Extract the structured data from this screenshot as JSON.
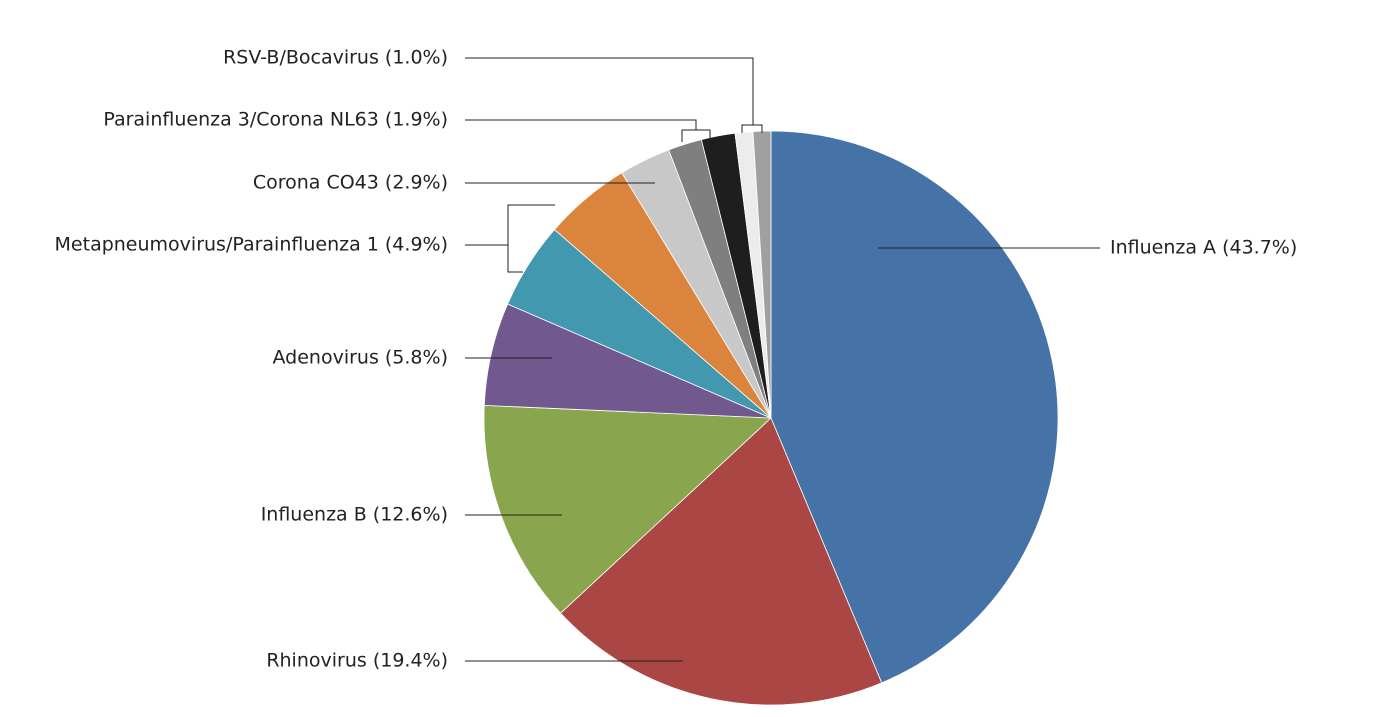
{
  "chart_data": {
    "type": "pie",
    "groups": [
      {
        "label": "Influenza A (43.7%)",
        "values": [
          43.7
        ],
        "colors": [
          "#4572a7"
        ]
      },
      {
        "label": "Rhinovirus (19.4%)",
        "values": [
          19.4
        ],
        "colors": [
          "#aa4643"
        ]
      },
      {
        "label": "Influenza B (12.6%)",
        "values": [
          12.6
        ],
        "colors": [
          "#89a54e"
        ]
      },
      {
        "label": "Adenovirus (5.8%)",
        "values": [
          5.8
        ],
        "colors": [
          "#71588f"
        ]
      },
      {
        "label": "Metapneumovirus/Parainfluenza 1 (4.9%)",
        "values": [
          4.9,
          4.9
        ],
        "colors": [
          "#4198af",
          "#db843d"
        ]
      },
      {
        "label": "Corona CO43 (2.9%)",
        "values": [
          2.9
        ],
        "colors": [
          "#c8c8c8"
        ]
      },
      {
        "label": "Parainfluenza 3/Corona NL63 (1.9%)",
        "values": [
          1.9,
          1.9
        ],
        "colors": [
          "#7f7f7f",
          "#1e1e1e"
        ]
      },
      {
        "label": "RSV-B/Bocavirus (1.0%)",
        "values": [
          1.0,
          1.0
        ],
        "colors": [
          "#ececec",
          "#a0a0a0"
        ]
      }
    ]
  }
}
